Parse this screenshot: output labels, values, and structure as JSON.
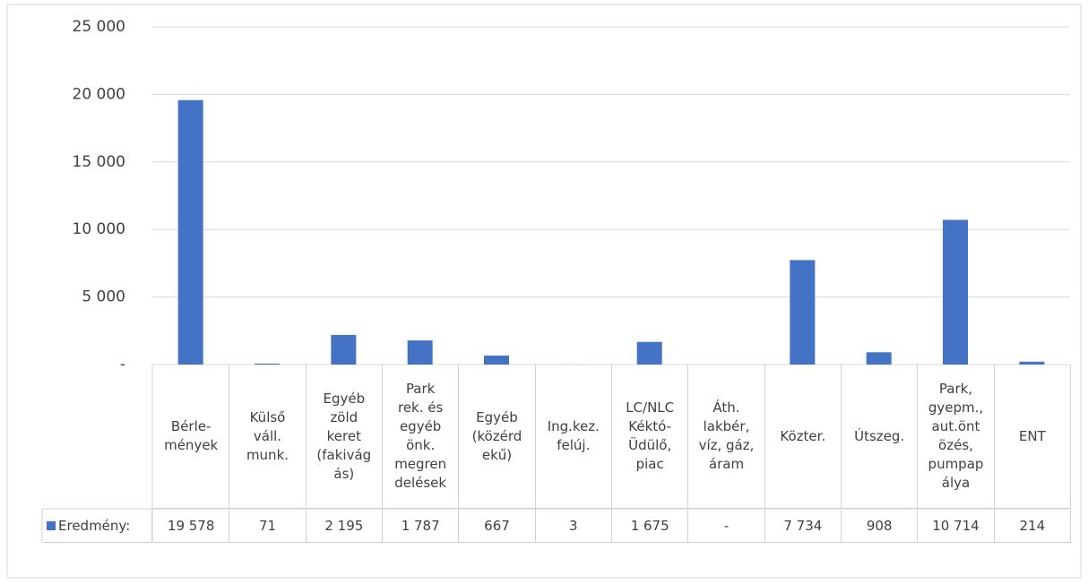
{
  "chart_data": {
    "type": "bar",
    "categories": [
      "Bérle-\nmények",
      "Külső\nváll.\nmunk.",
      "Egyéb\nzöld\nkeret\n(fakivág\nás)",
      "Park\nrek. és\negyéb\nönk.\nmegren\ndelések",
      "Egyéb\n(közérd\nekű)",
      "Ing.kez.\nfelúj.",
      "LC/NLC\nKéktó-\nÜdülő,\npiac",
      "Áth.\nlakbér,\nvíz, gáz,\náram",
      "Közter.",
      "Útszeg.",
      "Park,\ngyepm.,\naut.önt\nözés,\npumpap\nálya",
      "ENT"
    ],
    "series": [
      {
        "name": "Eredmény:",
        "color": "#4472c4",
        "values": [
          19578,
          71,
          2195,
          1787,
          667,
          3,
          1675,
          0,
          7734,
          908,
          10714,
          214
        ],
        "value_labels": [
          "19 578",
          "71",
          "2 195",
          "1 787",
          "667",
          "3",
          "1 675",
          "-",
          "7 734",
          "908",
          "10 714",
          "214"
        ]
      }
    ],
    "ylim": [
      0,
      25000
    ],
    "yticks": [
      {
        "value": 0,
        "label": "-"
      },
      {
        "value": 5000,
        "label": "5 000"
      },
      {
        "value": 10000,
        "label": "10 000"
      },
      {
        "value": 15000,
        "label": "15 000"
      },
      {
        "value": 20000,
        "label": "20 000"
      },
      {
        "value": 25000,
        "label": "25 000"
      }
    ],
    "grid": true
  }
}
